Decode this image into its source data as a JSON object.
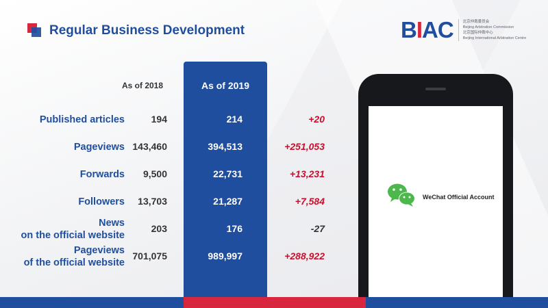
{
  "header": {
    "title": "Regular Business Development"
  },
  "logo": {
    "mark_b": "B",
    "mark_i": "I",
    "mark_ac": "AC",
    "line1": "北京仲裁委员会",
    "line2": "Beijing Arbitration Commission",
    "line3": "北京国际仲裁中心",
    "line4": "Beijing International Arbitration Centre"
  },
  "table": {
    "col_2018": "As of 2018",
    "col_2019": "As of 2019",
    "rows": [
      {
        "label": "Published  articles",
        "v2018": "194",
        "v2019": "214",
        "change": "+20"
      },
      {
        "label": "Pageviews",
        "v2018": "143,460",
        "v2019": "394,513",
        "change": "+251,053"
      },
      {
        "label": "Forwards",
        "v2018": "9,500",
        "v2019": "22,731",
        "change": "+13,231"
      },
      {
        "label": "Followers",
        "v2018": "13,703",
        "v2019": "21,287",
        "change": "+7,584"
      },
      {
        "label_line1": "News",
        "label_line2": "on the official website",
        "v2018": "203",
        "v2019": "176",
        "change": "-27"
      },
      {
        "label_line1": "Pageviews",
        "label_line2": "of the official website",
        "v2018": "701,075",
        "v2019": "989,997",
        "change": "+288,922"
      }
    ]
  },
  "phone": {
    "icon": "wechat-icon",
    "label": "WeChat Official Account"
  },
  "colors": {
    "brand_blue": "#1f4e9e",
    "brand_red": "#d7263d",
    "positive_change": "#c8102e"
  }
}
